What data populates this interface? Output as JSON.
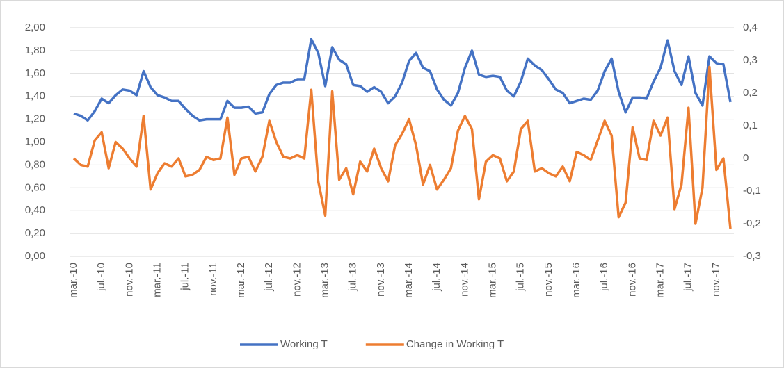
{
  "chart_data": {
    "type": "line",
    "categories": [
      "mar.-10",
      null,
      null,
      null,
      "jul.-10",
      null,
      null,
      null,
      "nov.-10",
      null,
      null,
      null,
      "mar.-11",
      null,
      null,
      null,
      "jul.-11",
      null,
      null,
      null,
      "nov.-11",
      null,
      null,
      null,
      "mar.-12",
      null,
      null,
      null,
      "jul.-12",
      null,
      null,
      null,
      "nov.-12",
      null,
      null,
      null,
      "mar.-13",
      null,
      null,
      null,
      "jul.-13",
      null,
      null,
      null,
      "nov.-13",
      null,
      null,
      null,
      "mar.-14",
      null,
      null,
      null,
      "jul.-14",
      null,
      null,
      null,
      "nov.-14",
      null,
      null,
      null,
      "mar.-15",
      null,
      null,
      null,
      "jul.-15",
      null,
      null,
      null,
      "nov.-15",
      null,
      null,
      null,
      "mar.-16",
      null,
      null,
      null,
      "jul.-16",
      null,
      null,
      null,
      "nov.-16",
      null,
      null,
      null,
      "mar.-17",
      null,
      null,
      null,
      "jul.-17",
      null,
      null,
      null,
      "nov.-17",
      null,
      null
    ],
    "series": [
      {
        "name": "Working T",
        "color": "#4472c4",
        "values": [
          1.25,
          1.23,
          1.19,
          1.27,
          1.38,
          1.34,
          1.41,
          1.46,
          1.45,
          1.41,
          1.62,
          1.48,
          1.41,
          1.39,
          1.36,
          1.36,
          1.29,
          1.23,
          1.19,
          1.2,
          1.2,
          1.2,
          1.36,
          1.3,
          1.3,
          1.31,
          1.25,
          1.26,
          1.42,
          1.5,
          1.52,
          1.52,
          1.55,
          1.55,
          1.9,
          1.78,
          1.49,
          1.83,
          1.72,
          1.68,
          1.5,
          1.49,
          1.44,
          1.48,
          1.44,
          1.34,
          1.4,
          1.52,
          1.71,
          1.78,
          1.65,
          1.62,
          1.46,
          1.37,
          1.32,
          1.43,
          1.65,
          1.8,
          1.59,
          1.57,
          1.58,
          1.57,
          1.45,
          1.4,
          1.53,
          1.73,
          1.67,
          1.63,
          1.55,
          1.46,
          1.43,
          1.34,
          1.36,
          1.38,
          1.37,
          1.45,
          1.62,
          1.73,
          1.44,
          1.26,
          1.39,
          1.39,
          1.38,
          1.53,
          1.65,
          1.89,
          1.62,
          1.5,
          1.75,
          1.43,
          1.32,
          1.75,
          1.69,
          1.68,
          1.35
        ]
      },
      {
        "name": "Change in Working T",
        "color": "#ed7d31",
        "axis": "y2",
        "values": [
          0,
          -0.02,
          -0.025,
          0.055,
          0.08,
          -0.03,
          0.05,
          0.03,
          0,
          -0.025,
          0.13,
          -0.095,
          -0.045,
          -0.015,
          -0.025,
          0,
          -0.055,
          -0.05,
          -0.035,
          0.005,
          -0.005,
          0,
          0.125,
          -0.05,
          0,
          0.005,
          -0.04,
          0.005,
          0.115,
          0.05,
          0.005,
          0,
          0.01,
          0,
          0.21,
          -0.07,
          -0.175,
          0.205,
          -0.065,
          -0.03,
          -0.11,
          -0.01,
          -0.04,
          0.03,
          -0.03,
          -0.07,
          0.04,
          0.075,
          0.12,
          0.04,
          -0.08,
          -0.02,
          -0.095,
          -0.065,
          -0.03,
          0.085,
          0.13,
          0.09,
          -0.125,
          -0.01,
          0.01,
          0,
          -0.07,
          -0.04,
          0.09,
          0.115,
          -0.04,
          -0.03,
          -0.045,
          -0.055,
          -0.025,
          -0.07,
          0.02,
          0.01,
          -0.005,
          0.055,
          0.115,
          0.07,
          -0.18,
          -0.135,
          0.095,
          0,
          -0.005,
          0.115,
          0.07,
          0.125,
          -0.155,
          -0.08,
          0.155,
          -0.2,
          -0.09,
          0.28,
          -0.035,
          0,
          -0.215
        ]
      }
    ],
    "ylim": [
      0,
      2
    ],
    "yticks": [
      {
        "value": 0,
        "label": "0,00"
      },
      {
        "value": 0.2,
        "label": "0,20"
      },
      {
        "value": 0.4,
        "label": "0,40"
      },
      {
        "value": 0.6,
        "label": "0,60"
      },
      {
        "value": 0.8,
        "label": "0,80"
      },
      {
        "value": 1,
        "label": "1,00"
      },
      {
        "value": 1.2,
        "label": "1,20"
      },
      {
        "value": 1.4,
        "label": "1,40"
      },
      {
        "value": 1.6,
        "label": "1,60"
      },
      {
        "value": 1.8,
        "label": "1,80"
      },
      {
        "value": 2,
        "label": "2,00"
      }
    ],
    "y2lim": [
      -0.3,
      0.4
    ],
    "y2ticks": [
      {
        "value": -0.3,
        "label": "-0,3"
      },
      {
        "value": -0.2,
        "label": "-0,2"
      },
      {
        "value": -0.1,
        "label": "-0,1"
      },
      0,
      {
        "value": 0.1,
        "label": "0,1"
      },
      {
        "value": 0.2,
        "label": "0,2"
      },
      {
        "value": 0.3,
        "label": "0,3"
      },
      {
        "value": 0.4,
        "label": "0,4"
      }
    ],
    "grid": true,
    "legend": "bottom"
  }
}
